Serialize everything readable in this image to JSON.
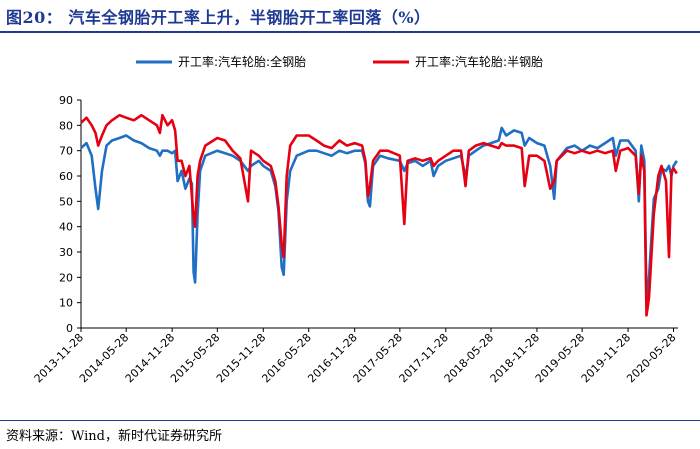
{
  "header": {
    "title": "图20：  汽车全钢胎开工率上升，半钢胎开工率回落（%）"
  },
  "footer": {
    "source": "资料来源：Wind，新时代证券研究所"
  },
  "chart_data": {
    "type": "line",
    "title": "",
    "xlabel": "",
    "ylabel": "",
    "ylim": [
      0,
      90
    ],
    "yticks": [
      0,
      10,
      20,
      30,
      40,
      50,
      60,
      70,
      80,
      90
    ],
    "grid": false,
    "legend_placement": "top-center",
    "xticks": [
      "2013-11-28",
      "2014-05-28",
      "2014-11-28",
      "2015-05-28",
      "2015-11-28",
      "2016-05-28",
      "2016-11-28",
      "2017-05-28",
      "2017-11-28",
      "2018-05-28",
      "2018-11-28",
      "2019-05-28",
      "2019-11-28",
      "2020-05-28"
    ],
    "series": [
      {
        "name": "开工率:汽车轮胎:全钢胎",
        "color": "#1f6fc5",
        "points": [
          [
            "2013-11-28",
            71
          ],
          [
            "2013-12-20",
            73
          ],
          [
            "2014-01-10",
            68
          ],
          [
            "2014-01-25",
            55
          ],
          [
            "2014-02-05",
            47
          ],
          [
            "2014-02-20",
            62
          ],
          [
            "2014-03-10",
            72
          ],
          [
            "2014-04-01",
            74
          ],
          [
            "2014-05-01",
            75
          ],
          [
            "2014-05-28",
            76
          ],
          [
            "2014-06-28",
            74
          ],
          [
            "2014-07-28",
            73
          ],
          [
            "2014-08-28",
            71
          ],
          [
            "2014-09-28",
            70
          ],
          [
            "2014-10-10",
            68
          ],
          [
            "2014-10-20",
            70
          ],
          [
            "2014-11-10",
            70
          ],
          [
            "2014-11-28",
            69
          ],
          [
            "2014-12-10",
            70
          ],
          [
            "2014-12-20",
            58
          ],
          [
            "2015-01-05",
            62
          ],
          [
            "2015-01-20",
            55
          ],
          [
            "2015-02-05",
            59
          ],
          [
            "2015-02-15",
            57
          ],
          [
            "2015-02-22",
            22
          ],
          [
            "2015-02-28",
            18
          ],
          [
            "2015-03-10",
            45
          ],
          [
            "2015-03-20",
            62
          ],
          [
            "2015-04-10",
            68
          ],
          [
            "2015-05-28",
            70
          ],
          [
            "2015-06-28",
            69
          ],
          [
            "2015-07-28",
            68
          ],
          [
            "2015-08-28",
            66
          ],
          [
            "2015-09-28",
            62
          ],
          [
            "2015-10-10",
            64
          ],
          [
            "2015-11-10",
            66
          ],
          [
            "2015-11-28",
            64
          ],
          [
            "2015-12-28",
            62
          ],
          [
            "2016-01-15",
            56
          ],
          [
            "2016-01-28",
            46
          ],
          [
            "2016-02-10",
            24
          ],
          [
            "2016-02-18",
            21
          ],
          [
            "2016-03-01",
            50
          ],
          [
            "2016-03-15",
            62
          ],
          [
            "2016-04-10",
            68
          ],
          [
            "2016-05-28",
            70
          ],
          [
            "2016-06-28",
            70
          ],
          [
            "2016-07-28",
            69
          ],
          [
            "2016-08-28",
            68
          ],
          [
            "2016-09-28",
            70
          ],
          [
            "2016-10-28",
            69
          ],
          [
            "2016-11-28",
            70
          ],
          [
            "2016-12-28",
            70
          ],
          [
            "2017-01-10",
            65
          ],
          [
            "2017-01-20",
            50
          ],
          [
            "2017-01-28",
            48
          ],
          [
            "2017-02-10",
            64
          ],
          [
            "2017-03-10",
            68
          ],
          [
            "2017-04-10",
            67
          ],
          [
            "2017-05-28",
            66
          ],
          [
            "2017-06-15",
            62
          ],
          [
            "2017-06-28",
            65
          ],
          [
            "2017-07-28",
            66
          ],
          [
            "2017-08-28",
            64
          ],
          [
            "2017-09-28",
            66
          ],
          [
            "2017-10-10",
            60
          ],
          [
            "2017-10-28",
            64
          ],
          [
            "2017-11-28",
            66
          ],
          [
            "2017-12-28",
            67
          ],
          [
            "2018-01-28",
            68
          ],
          [
            "2018-02-10",
            62
          ],
          [
            "2018-02-15",
            58
          ],
          [
            "2018-02-28",
            68
          ],
          [
            "2018-03-28",
            70
          ],
          [
            "2018-04-28",
            72
          ],
          [
            "2018-05-28",
            73
          ],
          [
            "2018-06-28",
            74
          ],
          [
            "2018-07-10",
            79
          ],
          [
            "2018-07-28",
            76
          ],
          [
            "2018-08-28",
            78
          ],
          [
            "2018-09-28",
            77
          ],
          [
            "2018-10-10",
            72
          ],
          [
            "2018-10-28",
            75
          ],
          [
            "2018-11-28",
            73
          ],
          [
            "2018-12-28",
            72
          ],
          [
            "2019-01-20",
            64
          ],
          [
            "2019-02-05",
            51
          ],
          [
            "2019-02-15",
            66
          ],
          [
            "2019-03-28",
            71
          ],
          [
            "2019-04-28",
            72
          ],
          [
            "2019-05-28",
            70
          ],
          [
            "2019-06-28",
            72
          ],
          [
            "2019-07-28",
            71
          ],
          [
            "2019-08-28",
            73
          ],
          [
            "2019-09-28",
            75
          ],
          [
            "2019-10-10",
            68
          ],
          [
            "2019-10-28",
            74
          ],
          [
            "2019-11-28",
            74
          ],
          [
            "2019-12-28",
            70
          ],
          [
            "2020-01-10",
            50
          ],
          [
            "2020-01-20",
            72
          ],
          [
            "2020-02-01",
            66
          ],
          [
            "2020-02-10",
            10
          ],
          [
            "2020-02-20",
            20
          ],
          [
            "2020-03-10",
            51
          ],
          [
            "2020-03-28",
            55
          ],
          [
            "2020-04-10",
            63
          ],
          [
            "2020-04-28",
            62
          ],
          [
            "2020-05-10",
            64
          ],
          [
            "2020-05-20",
            60
          ],
          [
            "2020-05-28",
            64
          ],
          [
            "2020-06-10",
            66
          ]
        ]
      },
      {
        "name": "开工率:汽车轮胎:半钢胎",
        "color": "#e60012",
        "points": [
          [
            "2013-11-28",
            81
          ],
          [
            "2013-12-20",
            83
          ],
          [
            "2014-01-10",
            80
          ],
          [
            "2014-01-25",
            77
          ],
          [
            "2014-02-05",
            72
          ],
          [
            "2014-02-20",
            76
          ],
          [
            "2014-03-10",
            80
          ],
          [
            "2014-04-01",
            82
          ],
          [
            "2014-05-01",
            84
          ],
          [
            "2014-05-28",
            83
          ],
          [
            "2014-06-28",
            82
          ],
          [
            "2014-07-28",
            84
          ],
          [
            "2014-08-28",
            82
          ],
          [
            "2014-09-28",
            80
          ],
          [
            "2014-10-10",
            77
          ],
          [
            "2014-10-20",
            84
          ],
          [
            "2014-11-10",
            80
          ],
          [
            "2014-11-28",
            82
          ],
          [
            "2014-12-10",
            78
          ],
          [
            "2014-12-20",
            66
          ],
          [
            "2015-01-05",
            66
          ],
          [
            "2015-01-20",
            60
          ],
          [
            "2015-02-05",
            64
          ],
          [
            "2015-02-15",
            52
          ],
          [
            "2015-02-22",
            44
          ],
          [
            "2015-02-28",
            40
          ],
          [
            "2015-03-10",
            60
          ],
          [
            "2015-03-20",
            66
          ],
          [
            "2015-04-10",
            72
          ],
          [
            "2015-05-28",
            75
          ],
          [
            "2015-06-28",
            74
          ],
          [
            "2015-07-28",
            70
          ],
          [
            "2015-08-28",
            67
          ],
          [
            "2015-09-28",
            50
          ],
          [
            "2015-10-10",
            70
          ],
          [
            "2015-11-10",
            68
          ],
          [
            "2015-11-28",
            66
          ],
          [
            "2015-12-28",
            64
          ],
          [
            "2016-01-15",
            58
          ],
          [
            "2016-01-28",
            48
          ],
          [
            "2016-02-10",
            33
          ],
          [
            "2016-02-18",
            28
          ],
          [
            "2016-03-01",
            60
          ],
          [
            "2016-03-15",
            72
          ],
          [
            "2016-04-10",
            76
          ],
          [
            "2016-05-28",
            76
          ],
          [
            "2016-06-28",
            74
          ],
          [
            "2016-07-28",
            72
          ],
          [
            "2016-08-28",
            71
          ],
          [
            "2016-09-28",
            74
          ],
          [
            "2016-10-28",
            72
          ],
          [
            "2016-11-28",
            73
          ],
          [
            "2016-12-28",
            72
          ],
          [
            "2017-01-10",
            66
          ],
          [
            "2017-01-20",
            52
          ],
          [
            "2017-01-28",
            56
          ],
          [
            "2017-02-10",
            66
          ],
          [
            "2017-03-10",
            70
          ],
          [
            "2017-04-10",
            70
          ],
          [
            "2017-05-28",
            68
          ],
          [
            "2017-06-15",
            41
          ],
          [
            "2017-06-28",
            66
          ],
          [
            "2017-07-28",
            67
          ],
          [
            "2017-08-28",
            66
          ],
          [
            "2017-09-28",
            67
          ],
          [
            "2017-10-10",
            64
          ],
          [
            "2017-10-28",
            66
          ],
          [
            "2017-11-28",
            68
          ],
          [
            "2017-12-28",
            70
          ],
          [
            "2018-01-28",
            70
          ],
          [
            "2018-02-10",
            60
          ],
          [
            "2018-02-15",
            56
          ],
          [
            "2018-02-28",
            70
          ],
          [
            "2018-03-28",
            72
          ],
          [
            "2018-04-28",
            73
          ],
          [
            "2018-05-28",
            72
          ],
          [
            "2018-06-28",
            71
          ],
          [
            "2018-07-10",
            73
          ],
          [
            "2018-07-28",
            72
          ],
          [
            "2018-08-28",
            72
          ],
          [
            "2018-09-28",
            71
          ],
          [
            "2018-10-10",
            56
          ],
          [
            "2018-10-28",
            68
          ],
          [
            "2018-11-28",
            68
          ],
          [
            "2018-12-28",
            66
          ],
          [
            "2019-01-20",
            55
          ],
          [
            "2019-02-05",
            58
          ],
          [
            "2019-02-15",
            66
          ],
          [
            "2019-03-28",
            70
          ],
          [
            "2019-04-28",
            69
          ],
          [
            "2019-05-28",
            70
          ],
          [
            "2019-06-28",
            69
          ],
          [
            "2019-07-28",
            70
          ],
          [
            "2019-08-28",
            69
          ],
          [
            "2019-09-28",
            70
          ],
          [
            "2019-10-10",
            62
          ],
          [
            "2019-10-28",
            70
          ],
          [
            "2019-11-28",
            71
          ],
          [
            "2019-12-28",
            68
          ],
          [
            "2020-01-10",
            53
          ],
          [
            "2020-01-20",
            68
          ],
          [
            "2020-02-01",
            62
          ],
          [
            "2020-02-10",
            5
          ],
          [
            "2020-02-20",
            12
          ],
          [
            "2020-03-10",
            45
          ],
          [
            "2020-03-28",
            60
          ],
          [
            "2020-04-10",
            64
          ],
          [
            "2020-04-28",
            58
          ],
          [
            "2020-05-10",
            28
          ],
          [
            "2020-05-20",
            62
          ],
          [
            "2020-05-28",
            63
          ],
          [
            "2020-06-10",
            61
          ]
        ]
      }
    ]
  }
}
